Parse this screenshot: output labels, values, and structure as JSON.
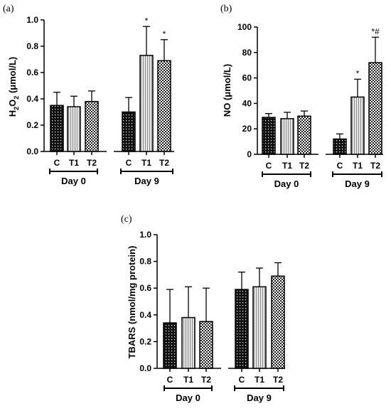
{
  "chart_data": [
    {
      "type": "bar",
      "panel_label": "(a)",
      "ylabel_main": "H",
      "ylabel_sub1": "2",
      "ylabel_mid": "O",
      "ylabel_sub2": "2",
      "ylabel_tail": " (μmol/L)",
      "ylim": [
        0,
        1.0
      ],
      "yticks": [
        "0.0",
        "0.2",
        "0.4",
        "0.6",
        "0.8",
        "1.0"
      ],
      "groups": [
        {
          "name": "Day 0",
          "categories": [
            "C",
            "T1",
            "T2"
          ],
          "values": [
            0.35,
            0.34,
            0.38
          ],
          "errors": [
            0.1,
            0.08,
            0.08
          ],
          "marks": [
            "",
            "",
            ""
          ]
        },
        {
          "name": "Day 9",
          "categories": [
            "C",
            "T1",
            "T2"
          ],
          "values": [
            0.3,
            0.73,
            0.69
          ],
          "errors": [
            0.11,
            0.22,
            0.16
          ],
          "marks": [
            "",
            "*",
            "*"
          ]
        }
      ]
    },
    {
      "type": "bar",
      "panel_label": "(b)",
      "ylabel": "NO (μmol/L)",
      "ylim": [
        0,
        100
      ],
      "yticks": [
        "0",
        "20",
        "40",
        "60",
        "80",
        "100"
      ],
      "groups": [
        {
          "name": "Day 0",
          "categories": [
            "C",
            "T1",
            "T2"
          ],
          "values": [
            29,
            28,
            30
          ],
          "errors": [
            3,
            5,
            4
          ],
          "marks": [
            "",
            "",
            ""
          ]
        },
        {
          "name": "Day 9",
          "categories": [
            "C",
            "T1",
            "T2"
          ],
          "values": [
            12,
            45,
            72
          ],
          "errors": [
            4,
            14,
            20
          ],
          "marks": [
            "",
            "*",
            "*#"
          ]
        }
      ]
    },
    {
      "type": "bar",
      "panel_label": "(c)",
      "ylabel": "TBARS (nmol/mg protein)",
      "ylim": [
        0,
        1.0
      ],
      "yticks": [
        "0.0",
        "0.2",
        "0.4",
        "0.6",
        "0.8",
        "1.0"
      ],
      "groups": [
        {
          "name": "Day 0",
          "categories": [
            "C",
            "T1",
            "T2"
          ],
          "values": [
            0.34,
            0.38,
            0.35
          ],
          "errors": [
            0.25,
            0.23,
            0.25
          ],
          "marks": [
            "",
            "",
            ""
          ]
        },
        {
          "name": "Day 9",
          "categories": [
            "C",
            "T1",
            "T2"
          ],
          "values": [
            0.59,
            0.61,
            0.69
          ],
          "errors": [
            0.13,
            0.14,
            0.1
          ],
          "marks": [
            "",
            "",
            ""
          ]
        }
      ]
    }
  ],
  "fill_patterns": [
    "dark-dotted",
    "light-striped",
    "checkered"
  ]
}
